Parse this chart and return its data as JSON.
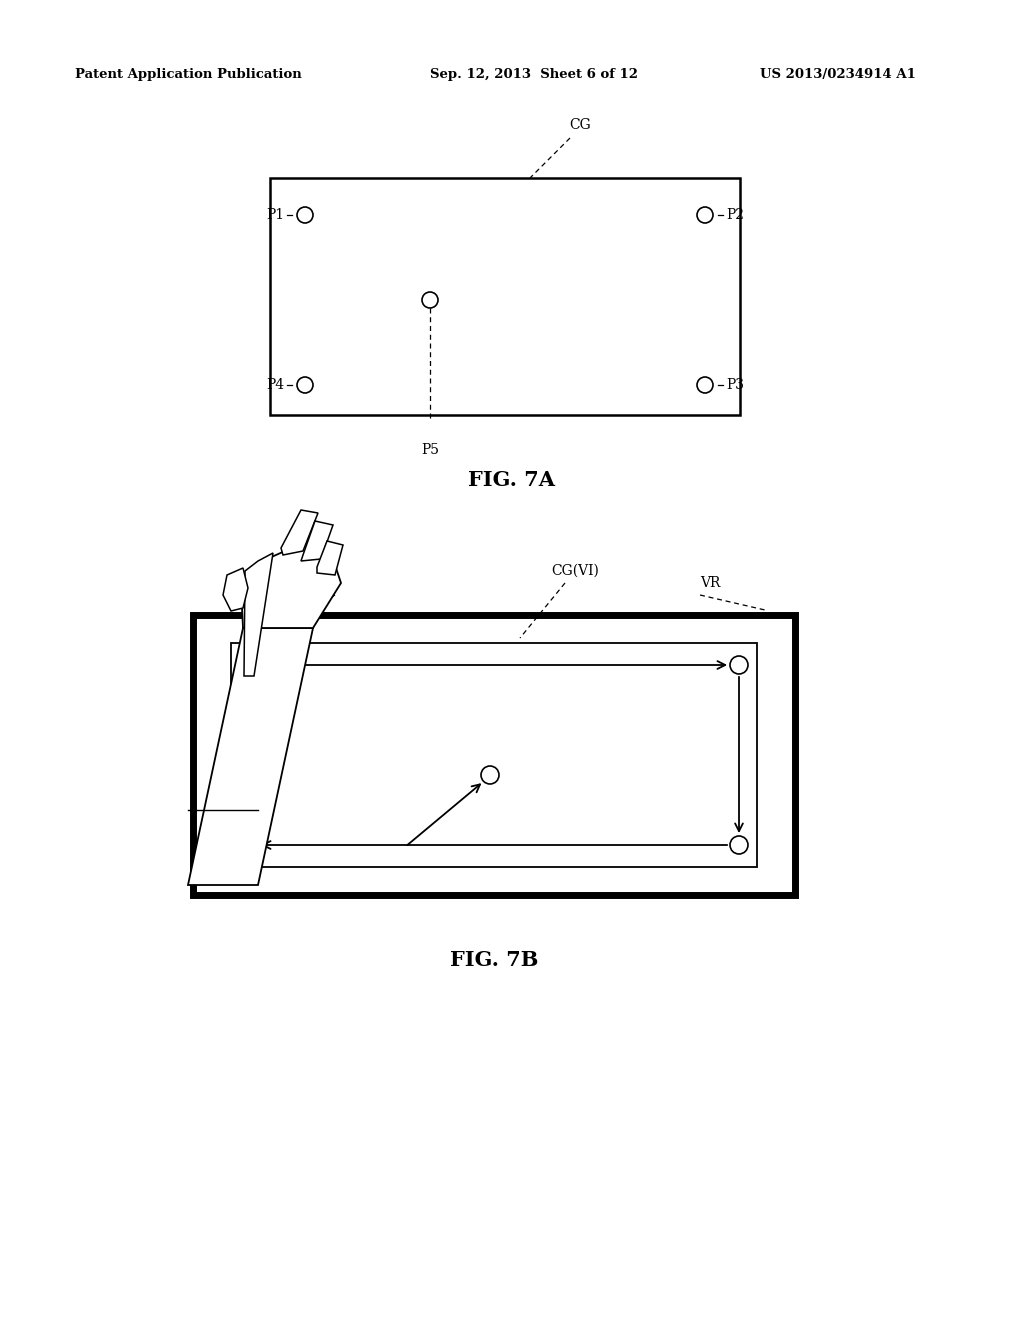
{
  "bg_color": "#ffffff",
  "header_left": "Patent Application Publication",
  "header_mid": "Sep. 12, 2013  Sheet 6 of 12",
  "header_right": "US 2013/0234914 A1",
  "fig7a_caption": "FIG. 7A",
  "fig7b_caption": "FIG. 7B"
}
